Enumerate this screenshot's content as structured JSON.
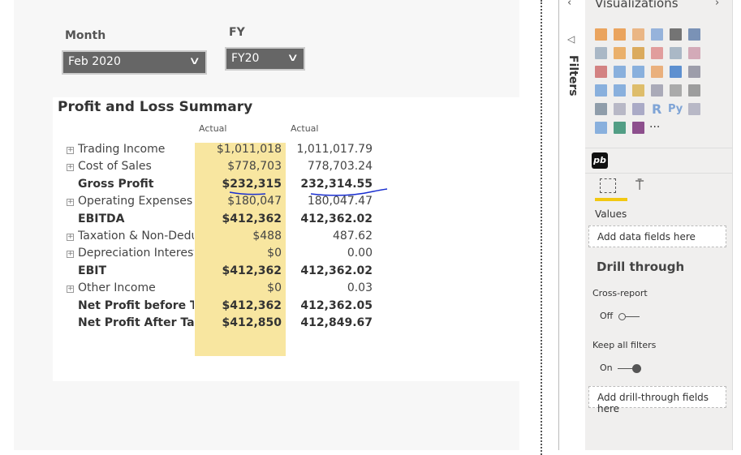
{
  "slicers": {
    "month": {
      "label": "Month",
      "value": "Feb 2020"
    },
    "fy": {
      "label": "FY",
      "value": "FY20"
    }
  },
  "visual": {
    "title": "Profit and Loss Summary",
    "columns": [
      "Actual",
      "Actual"
    ],
    "rows": [
      {
        "label": "Trading Income",
        "v1": "$1,011,018",
        "v2": "1,011,017.79",
        "expandable": true,
        "bold": false
      },
      {
        "label": "Cost of Sales",
        "v1": "$778,703",
        "v2": "778,703.24",
        "expandable": true,
        "bold": false
      },
      {
        "label": "Gross Profit",
        "v1": "$232,315",
        "v2": "232,314.55",
        "expandable": false,
        "bold": true
      },
      {
        "label": "Operating Expenses",
        "v1": "$180,047",
        "v2": "180,047.47",
        "expandable": true,
        "bold": false
      },
      {
        "label": "EBITDA",
        "v1": "$412,362",
        "v2": "412,362.02",
        "expandable": false,
        "bold": true
      },
      {
        "label": "Taxation & Non-Deductible",
        "v1": "$488",
        "v2": "487.62",
        "expandable": true,
        "bold": false
      },
      {
        "label": "Depreciation Interest",
        "v1": "$0",
        "v2": "0.00",
        "expandable": true,
        "bold": false
      },
      {
        "label": "EBIT",
        "v1": "$412,362",
        "v2": "412,362.02",
        "expandable": false,
        "bold": true
      },
      {
        "label": "Other Income",
        "v1": "$0",
        "v2": "0.03",
        "expandable": true,
        "bold": false
      },
      {
        "label": "Net Profit before Tax",
        "v1": "$412,362",
        "v2": "412,362.05",
        "expandable": false,
        "bold": true
      },
      {
        "label": "Net Profit After Tax",
        "v1": "$412,850",
        "v2": "412,849.67",
        "expandable": false,
        "bold": true
      }
    ],
    "highlight_color": "#f8e6a0",
    "annotation_color": "#1a2fd0"
  },
  "filters": {
    "label": "Filters"
  },
  "pane": {
    "title": "Visualizations",
    "custom_visual": "pb",
    "more": "···",
    "values_label": "Values",
    "values_well": "Add data fields here",
    "drill_title": "Drill through",
    "cross_report": "Cross-report",
    "cross_state": "Off",
    "keep_filters": "Keep all filters",
    "keep_state": "On",
    "drill_well": "Add drill-through fields here",
    "accent": "#f2c811"
  }
}
